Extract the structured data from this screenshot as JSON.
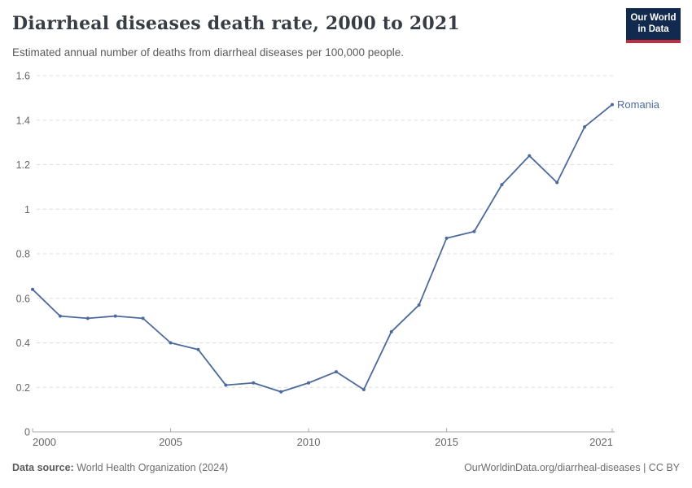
{
  "header": {
    "title": "Diarrheal diseases death rate, 2000 to 2021",
    "subtitle": "Estimated annual number of deaths from diarrheal diseases per 100,000 people.",
    "logo_line1": "Our World",
    "logo_line2": "in Data"
  },
  "chart_data": {
    "type": "line",
    "title": "Diarrheal diseases death rate, 2000 to 2021",
    "subtitle": "Estimated annual number of deaths from diarrheal diseases per 100,000 people.",
    "xlabel": "",
    "ylabel": "",
    "x": [
      2000,
      2001,
      2002,
      2003,
      2004,
      2005,
      2006,
      2007,
      2008,
      2009,
      2010,
      2011,
      2012,
      2013,
      2014,
      2015,
      2016,
      2017,
      2018,
      2019,
      2020,
      2021
    ],
    "series": [
      {
        "name": "Romania",
        "values": [
          0.64,
          0.52,
          0.51,
          0.52,
          0.51,
          0.4,
          0.37,
          0.21,
          0.22,
          0.18,
          0.22,
          0.27,
          0.19,
          0.45,
          0.57,
          0.87,
          0.9,
          1.11,
          1.24,
          1.12,
          1.37,
          1.47
        ]
      }
    ],
    "xlim": [
      2000,
      2021
    ],
    "ylim": [
      0,
      1.6
    ],
    "x_ticks": [
      2000,
      2005,
      2010,
      2015,
      2021
    ],
    "y_ticks": [
      0,
      0.2,
      0.4,
      0.6,
      0.8,
      1,
      1.2,
      1.4,
      1.6
    ],
    "y_tick_labels": [
      "0",
      "0.2",
      "0.4",
      "0.6",
      "0.8",
      "1",
      "1.2",
      "1.4",
      "1.6"
    ],
    "grid": "horizontal-dashed",
    "legend_position": "end-of-line-label",
    "end_label": "Romania"
  },
  "footer": {
    "source_label": "Data source:",
    "source_value": " World Health Organization (2024)",
    "rights": "OurWorldinData.org/diarrheal-diseases | CC BY"
  },
  "colors": {
    "series_line": "#4c6a9c",
    "series_label": "#4c6a9c",
    "grid_line": "#dcdcdc",
    "axis_line": "#a8a8a8",
    "tick_label": "#666666",
    "title_text": "#373d43",
    "subtitle_text": "#5b5b5b",
    "logo_bg": "#122a4e",
    "logo_stripe": "#bf2e3e"
  }
}
